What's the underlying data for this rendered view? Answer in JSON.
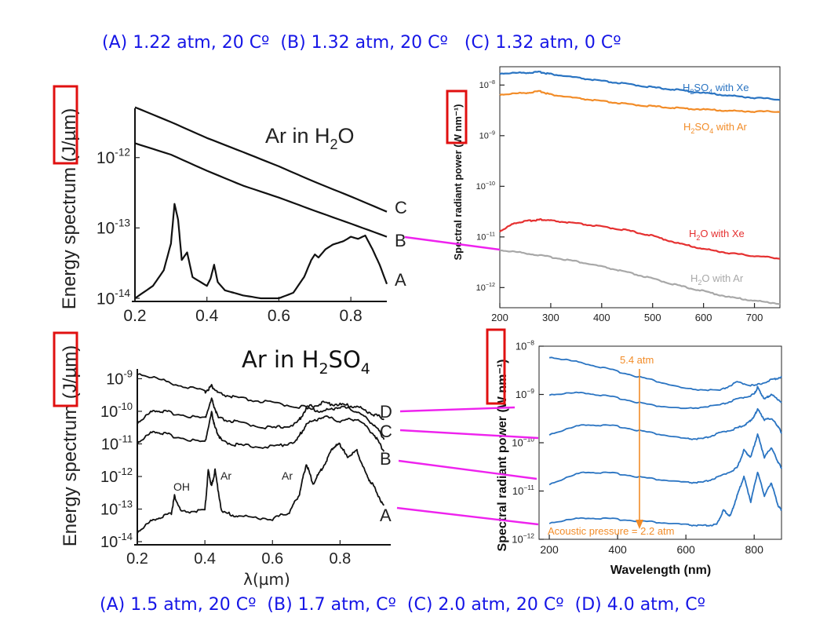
{
  "captions": {
    "top": "(A) 1.22 atm, 20 Cº  (B) 1.32 atm, 20 Cº   (C) 1.32 atm, 0 Cº",
    "bottom": "(A) 1.5 atm, 20 Cº  (B) 1.7 atm, Cº  (C) 2.0 atm, 20 Cº  (D) 4.0 atm, Cº"
  },
  "colors": {
    "caption": "#1515e6",
    "highlight_box": "#e01010",
    "connector": "#ee22ee",
    "H2SO4_Xe": "#2a74c2",
    "H2SO4_Ar": "#f28c28",
    "H2O_Xe": "#e53030",
    "H2O_Ar": "#a8a8a8",
    "pressure_series": "#2a74c2",
    "arrow": "#f28c28"
  },
  "chart_data": [
    {
      "id": "ar-h2o",
      "type": "line",
      "title": "Ar in H2O",
      "xlabel": "",
      "ylabel": "Energy spectrum (J/µm)",
      "xscale": "linear",
      "yscale": "log",
      "xlim": [
        0.2,
        0.9
      ],
      "ylim": [
        1e-14,
        1e-11
      ],
      "xticks": [
        "0.2",
        "0.4",
        "0.6",
        "0.8"
      ],
      "yticks": [
        {
          "base": "10",
          "exp": "-14",
          "value": 1e-14
        },
        {
          "base": "10",
          "exp": "-13",
          "value": 1e-13
        },
        {
          "base": "10",
          "exp": "-12",
          "value": 1e-12
        }
      ],
      "series": [
        {
          "name": "C",
          "x": [
            0.2,
            0.3,
            0.4,
            0.5,
            0.6,
            0.7,
            0.8,
            0.9
          ],
          "y": [
            5.2e-12,
            3.2e-12,
            1.9e-12,
            1.2e-12,
            7.5e-13,
            4.5e-13,
            2.8e-13,
            1.7e-13
          ]
        },
        {
          "name": "B",
          "x": [
            0.2,
            0.3,
            0.4,
            0.5,
            0.6,
            0.7,
            0.8,
            0.9
          ],
          "y": [
            1.6e-12,
            1.1e-12,
            6.5e-13,
            4e-13,
            2.7e-13,
            1.75e-13,
            1.15e-13,
            7.5e-14
          ]
        },
        {
          "name": "A",
          "x": [
            0.2,
            0.25,
            0.28,
            0.3,
            0.31,
            0.32,
            0.33,
            0.345,
            0.36,
            0.4,
            0.41,
            0.42,
            0.43,
            0.45,
            0.5,
            0.55,
            0.6,
            0.64,
            0.67,
            0.69,
            0.7,
            0.71,
            0.73,
            0.75,
            0.78,
            0.8,
            0.82,
            0.84,
            0.86,
            0.88,
            0.9
          ],
          "y": [
            1e-14,
            1.5e-14,
            2.5e-14,
            6e-14,
            2.2e-13,
            1.3e-13,
            3.5e-14,
            4.5e-14,
            2e-14,
            1.5e-14,
            1.9e-14,
            3e-14,
            1.7e-14,
            1.3e-14,
            1.1e-14,
            1e-14,
            1e-14,
            1.2e-14,
            2e-14,
            3.5e-14,
            4.2e-14,
            3.8e-14,
            5e-14,
            5.8e-14,
            6.5e-14,
            7.5e-14,
            7e-14,
            7.8e-14,
            5e-14,
            3e-14,
            1.6e-14
          ]
        }
      ]
    },
    {
      "id": "ar-h2so4",
      "type": "line",
      "title": "Ar in H2SO4",
      "xlabel": "λ(µm)",
      "ylabel": "Energy spectrum (J/µm)",
      "xscale": "linear",
      "yscale": "log",
      "xlim": [
        0.2,
        0.95
      ],
      "ylim": [
        1e-14,
        1e-09
      ],
      "xticks": [
        "0.2",
        "0.4",
        "0.6",
        "0.8"
      ],
      "yticks": [
        {
          "base": "10",
          "exp": "-14",
          "value": 1e-14
        },
        {
          "base": "10",
          "exp": "-13",
          "value": 1e-13
        },
        {
          "base": "10",
          "exp": "-12",
          "value": 1e-12
        },
        {
          "base": "10",
          "exp": "-11",
          "value": 1e-11
        },
        {
          "base": "10",
          "exp": "-10",
          "value": 1e-10
        },
        {
          "base": "10",
          "exp": "-9",
          "value": 1e-09
        }
      ],
      "annotations": [
        "OH",
        "Ar",
        "Ar"
      ],
      "series": [
        {
          "name": "D",
          "x": [
            0.2,
            0.3,
            0.4,
            0.42,
            0.44,
            0.5,
            0.6,
            0.7,
            0.75,
            0.8,
            0.85,
            0.9,
            0.93
          ],
          "y": [
            1.5e-09,
            7.5e-10,
            4e-10,
            6e-10,
            3.5e-10,
            2.5e-10,
            1.8e-10,
            1.3e-10,
            1.8e-10,
            1.6e-10,
            1.4e-10,
            8e-11,
            6e-11
          ]
        },
        {
          "name": "C",
          "x": [
            0.2,
            0.25,
            0.3,
            0.4,
            0.42,
            0.44,
            0.5,
            0.6,
            0.67,
            0.7,
            0.75,
            0.8,
            0.85,
            0.9,
            0.93
          ],
          "y": [
            4.5e-11,
            1.1e-10,
            9e-11,
            6e-11,
            2.3e-10,
            6e-11,
            4.5e-11,
            3e-11,
            4e-11,
            1.2e-10,
            1e-10,
            1.4e-10,
            1e-10,
            4e-11,
            1.5e-11
          ]
        },
        {
          "name": "B",
          "x": [
            0.2,
            0.25,
            0.3,
            0.4,
            0.42,
            0.43,
            0.45,
            0.5,
            0.6,
            0.67,
            0.7,
            0.75,
            0.8,
            0.85,
            0.9,
            0.93
          ],
          "y": [
            1.1e-11,
            2.5e-11,
            1.8e-11,
            1.1e-11,
            9e-11,
            3e-11,
            1.2e-11,
            9e-12,
            8e-12,
            1.2e-11,
            4e-11,
            7e-11,
            5e-11,
            6e-11,
            2e-11,
            6e-12
          ]
        },
        {
          "name": "A",
          "x": [
            0.2,
            0.25,
            0.3,
            0.31,
            0.33,
            0.4,
            0.41,
            0.42,
            0.43,
            0.45,
            0.5,
            0.6,
            0.65,
            0.68,
            0.7,
            0.72,
            0.75,
            0.78,
            0.8,
            0.82,
            0.85,
            0.88,
            0.9,
            0.93
          ],
          "y": [
            2e-14,
            5e-14,
            7e-14,
            2.5e-13,
            8e-14,
            9e-14,
            1.5e-12,
            5e-13,
            1.5e-12,
            8e-14,
            6e-14,
            5e-14,
            8e-14,
            3e-13,
            2.5e-12,
            6e-13,
            2e-12,
            8e-12,
            1e-11,
            4e-12,
            6e-12,
            1e-12,
            5e-13,
            1.2e-13
          ]
        }
      ]
    },
    {
      "id": "radiant-power-gas",
      "type": "line",
      "title": "",
      "xlabel": "",
      "ylabel": "Spectral radiant power (W nm⁻¹)",
      "xscale": "linear",
      "yscale": "log",
      "xlim": [
        200,
        750
      ],
      "ylim": [
        5e-13,
        2e-08
      ],
      "xticks": [
        "200",
        "300",
        "400",
        "500",
        "600",
        "700"
      ],
      "yticks": [
        {
          "base": "10",
          "exp": "−12",
          "value": 1e-12
        },
        {
          "base": "10",
          "exp": "−11",
          "value": 1e-11
        },
        {
          "base": "10",
          "exp": "−10",
          "value": 1e-10
        },
        {
          "base": "10",
          "exp": "−9",
          "value": 1e-09
        },
        {
          "base": "10",
          "exp": "−8",
          "value": 1e-08
        }
      ],
      "series": [
        {
          "name": "H2SO4 with Xe",
          "label": {
            "main": "H",
            "sub1": "2",
            "mid": "SO",
            "sub2": "4",
            "rest": " with Xe"
          },
          "x": [
            200,
            250,
            280,
            300,
            350,
            400,
            450,
            500,
            550,
            600,
            650,
            700,
            750
          ],
          "y": [
            1.7e-08,
            1.75e-08,
            1.8e-08,
            1.65e-08,
            1.4e-08,
            1.2e-08,
            1.05e-08,
            9e-09,
            8e-09,
            7e-09,
            6.2e-09,
            5.6e-09,
            5.2e-09
          ]
        },
        {
          "name": "H2SO4 with Ar",
          "label": {
            "main": "H",
            "sub1": "2",
            "mid": "SO",
            "sub2": "4",
            "rest": " with Ar"
          },
          "x": [
            200,
            250,
            280,
            300,
            350,
            400,
            450,
            500,
            550,
            600,
            650,
            700,
            750
          ],
          "y": [
            6.5e-09,
            7e-09,
            7.5e-09,
            6.5e-09,
            5.5e-09,
            4.8e-09,
            4.2e-09,
            3.8e-09,
            3.5e-09,
            3.3e-09,
            3.1e-09,
            3e-09,
            3e-09
          ]
        },
        {
          "name": "H2O with Xe",
          "label": {
            "main": "H",
            "sub1": "2",
            "mid": "O",
            "sub2": "",
            "rest": " with Xe"
          },
          "x": [
            200,
            230,
            260,
            280,
            300,
            350,
            400,
            450,
            500,
            550,
            600,
            650,
            700,
            750
          ],
          "y": [
            1.3e-11,
            1.9e-11,
            2.1e-11,
            2.2e-11,
            2.1e-11,
            1.85e-11,
            1.6e-11,
            1.35e-11,
            1.05e-11,
            7.5e-12,
            5.8e-12,
            4.8e-12,
            4.2e-12,
            3.8e-12
          ]
        },
        {
          "name": "H2O with Ar",
          "label": {
            "main": "H",
            "sub1": "2",
            "mid": "O",
            "sub2": "",
            "rest": " with Ar"
          },
          "x": [
            200,
            250,
            300,
            350,
            400,
            450,
            500,
            550,
            600,
            650,
            700,
            750
          ],
          "y": [
            5.5e-12,
            4.8e-12,
            4e-12,
            3.3e-12,
            2.6e-12,
            2e-12,
            1.5e-12,
            1.1e-12,
            8.5e-13,
            6.5e-13,
            5.5e-13,
            4.8e-13
          ]
        }
      ]
    },
    {
      "id": "radiant-power-pressure",
      "type": "line",
      "title": "",
      "xlabel": "Wavelength (nm)",
      "ylabel": "Spectral radiant power (W nm⁻¹)",
      "xscale": "linear",
      "yscale": "log",
      "xlim": [
        200,
        880
      ],
      "ylim": [
        1e-12,
        1e-08
      ],
      "xticks": [
        "200",
        "400",
        "600",
        "800"
      ],
      "yticks": [
        {
          "base": "10",
          "exp": "−12",
          "value": 1e-12
        },
        {
          "base": "10",
          "exp": "−11",
          "value": 1e-11
        },
        {
          "base": "10",
          "exp": "−10",
          "value": 1e-10
        },
        {
          "base": "10",
          "exp": "−9",
          "value": 1e-09
        },
        {
          "base": "10",
          "exp": "−8",
          "value": 1e-08
        }
      ],
      "annotations": {
        "top": "5.4 atm",
        "bottom": "Acoustic pressure = 2.2 atm"
      },
      "series": [
        {
          "name": "5.4 atm",
          "x": [
            200,
            300,
            400,
            500,
            600,
            700,
            750,
            800,
            850,
            880
          ],
          "y": [
            6e-09,
            4.5e-09,
            3e-09,
            2e-09,
            1.3e-09,
            1.2e-09,
            1.8e-09,
            1.5e-09,
            2e-09,
            2.3e-09
          ]
        },
        {
          "name": "",
          "x": [
            200,
            300,
            400,
            500,
            600,
            700,
            750,
            800,
            810,
            830,
            850,
            880
          ],
          "y": [
            1e-09,
            1.1e-09,
            8.5e-10,
            6e-10,
            5e-10,
            6e-10,
            8e-10,
            1e-09,
            1.4e-09,
            8e-10,
            1e-09,
            7e-10
          ]
        },
        {
          "name": "",
          "x": [
            200,
            300,
            400,
            500,
            600,
            650,
            700,
            750,
            780,
            800,
            810,
            830,
            850,
            870,
            880
          ],
          "y": [
            1.5e-10,
            2.4e-10,
            2.2e-10,
            1.6e-10,
            1.2e-10,
            1.2e-10,
            1.6e-10,
            2e-10,
            2.5e-10,
            3.5e-10,
            5e-10,
            3e-10,
            3.2e-10,
            2.2e-10,
            1.6e-10
          ]
        },
        {
          "name": "",
          "x": [
            200,
            300,
            400,
            500,
            600,
            650,
            700,
            750,
            770,
            790,
            810,
            830,
            850,
            870,
            880
          ],
          "y": [
            1.4e-11,
            2.5e-11,
            2.3e-11,
            1.8e-11,
            1.5e-11,
            1.5e-11,
            2e-11,
            3e-11,
            7e-11,
            5e-11,
            1.5e-10,
            5e-11,
            8e-11,
            4e-11,
            3e-11
          ]
        },
        {
          "name": "Acoustic pressure = 2.2 atm",
          "x": [
            200,
            300,
            400,
            500,
            600,
            650,
            690,
            710,
            730,
            750,
            770,
            790,
            810,
            830,
            850,
            870,
            880
          ],
          "y": [
            2.2e-12,
            2.8e-12,
            2.6e-12,
            2.3e-12,
            2e-12,
            1.9e-12,
            2e-12,
            4e-12,
            3e-12,
            8e-12,
            2e-11,
            6e-12,
            2.5e-11,
            8e-12,
            1.5e-11,
            5e-12,
            4e-12
          ]
        }
      ]
    }
  ],
  "labels": {
    "ar_in": "Ar in H",
    "h2o_sub": "2",
    "h2o_tail": "O",
    "h2so4_sub": "2",
    "h2so4_mid": "SO",
    "h2so4_sub2": "4"
  }
}
